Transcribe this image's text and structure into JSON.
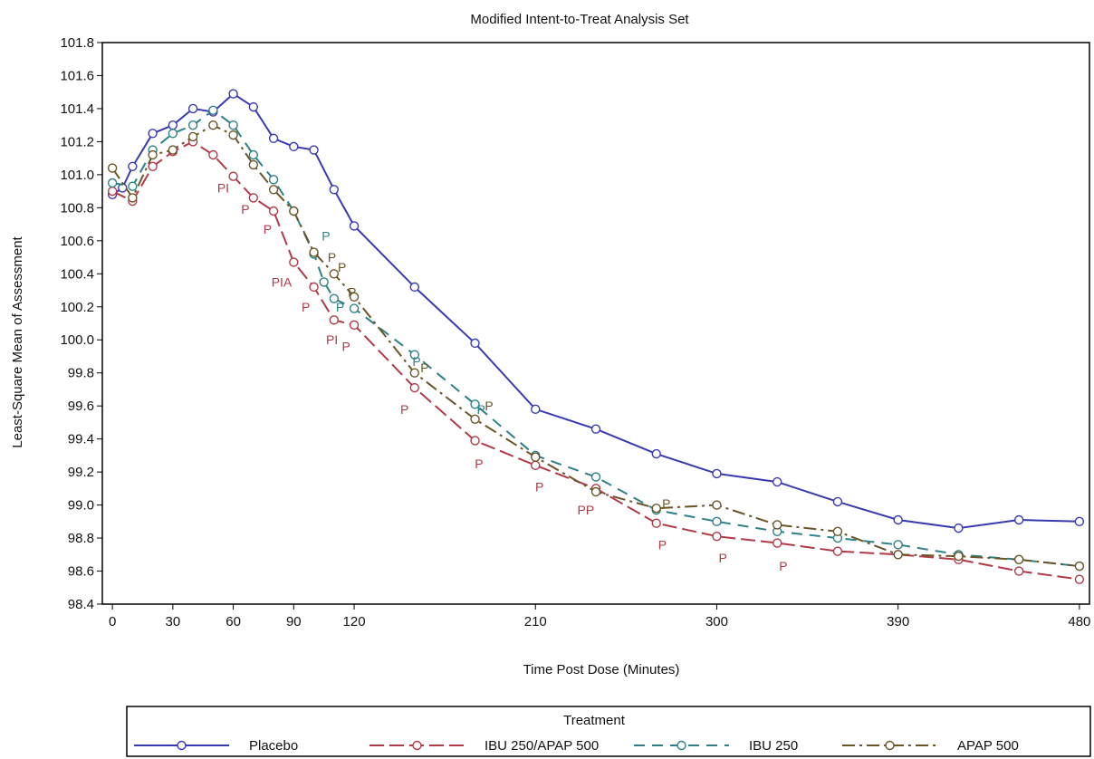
{
  "chart_data": {
    "type": "line",
    "title": "Modified Intent-to-Treat Analysis Set",
    "xlabel": "Time Post Dose (Minutes)",
    "ylabel": "Least-Square Mean of Assessment",
    "xlim": [
      -5,
      485
    ],
    "ylim": [
      98.4,
      101.8
    ],
    "xticks": [
      0,
      30,
      60,
      90,
      120,
      210,
      300,
      390,
      480
    ],
    "yticks": [
      98.4,
      98.6,
      98.8,
      99.0,
      99.2,
      99.4,
      99.6,
      99.8,
      100.0,
      100.2,
      100.4,
      100.6,
      100.8,
      101.0,
      101.2,
      101.4,
      101.6,
      101.8
    ],
    "ytick_labels": [
      "98.4",
      "98.6",
      "98.8",
      "99.0",
      "99.2",
      "99.4",
      "99.6",
      "99.8",
      "100.0",
      "100.2",
      "100.4",
      "100.6",
      "100.8",
      "101.0",
      "101.2",
      "101.4",
      "101.6",
      "101.8"
    ],
    "grid": false,
    "legend": {
      "title": "Treatment",
      "placement": "bottom"
    },
    "series": [
      {
        "name": "Placebo",
        "color": "#3a3ab0",
        "dash": "solid",
        "points": [
          [
            0,
            100.88
          ],
          [
            5,
            100.92
          ],
          [
            10,
            101.05
          ],
          [
            20,
            101.25
          ],
          [
            30,
            101.3
          ],
          [
            40,
            101.4
          ],
          [
            50,
            101.38
          ],
          [
            60,
            101.49
          ],
          [
            70,
            101.41
          ],
          [
            80,
            101.22
          ],
          [
            90,
            101.17
          ],
          [
            100,
            101.15
          ],
          [
            110,
            100.91
          ],
          [
            120,
            100.69
          ],
          [
            150,
            100.32
          ],
          [
            180,
            99.98
          ],
          [
            210,
            99.58
          ],
          [
            240,
            99.46
          ],
          [
            270,
            99.31
          ],
          [
            300,
            99.19
          ],
          [
            330,
            99.14
          ],
          [
            360,
            99.02
          ],
          [
            390,
            98.91
          ],
          [
            420,
            98.86
          ],
          [
            450,
            98.91
          ],
          [
            480,
            98.9
          ]
        ]
      },
      {
        "name": "IBU 250/APAP 500",
        "color": "#b03a48",
        "dash": "longdash",
        "points": [
          [
            0,
            100.9
          ],
          [
            10,
            100.84
          ],
          [
            20,
            101.05
          ],
          [
            30,
            101.14
          ],
          [
            40,
            101.2
          ],
          [
            50,
            101.12
          ],
          [
            60,
            100.99
          ],
          [
            70,
            100.86
          ],
          [
            80,
            100.78
          ],
          [
            90,
            100.47
          ],
          [
            100,
            100.32
          ],
          [
            110,
            100.12
          ],
          [
            120,
            100.09
          ],
          [
            150,
            99.71
          ],
          [
            180,
            99.39
          ],
          [
            210,
            99.24
          ],
          [
            240,
            99.1
          ],
          [
            270,
            98.89
          ],
          [
            300,
            98.81
          ],
          [
            330,
            98.77
          ],
          [
            360,
            98.72
          ],
          [
            390,
            98.7
          ],
          [
            420,
            98.67
          ],
          [
            450,
            98.6
          ],
          [
            480,
            98.55
          ]
        ]
      },
      {
        "name": "IBU 250",
        "color": "#2e8086",
        "dash": "dash",
        "points": [
          [
            0,
            100.95
          ],
          [
            10,
            100.93
          ],
          [
            20,
            101.15
          ],
          [
            30,
            101.25
          ],
          [
            40,
            101.3
          ],
          [
            50,
            101.39
          ],
          [
            60,
            101.3
          ],
          [
            70,
            101.12
          ],
          [
            80,
            100.97
          ],
          [
            90,
            100.78
          ],
          [
            100,
            100.52
          ],
          [
            105,
            100.35
          ],
          [
            110,
            100.25
          ],
          [
            120,
            100.19
          ],
          [
            150,
            99.91
          ],
          [
            180,
            99.61
          ],
          [
            210,
            99.3
          ],
          [
            240,
            99.17
          ],
          [
            270,
            98.97
          ],
          [
            300,
            98.9
          ],
          [
            330,
            98.84
          ],
          [
            360,
            98.8
          ],
          [
            390,
            98.76
          ],
          [
            420,
            98.7
          ],
          [
            450,
            98.67
          ],
          [
            480,
            98.63
          ]
        ]
      },
      {
        "name": "APAP 500",
        "color": "#6b5528",
        "dash": "dashdot",
        "points": [
          [
            0,
            101.04
          ],
          [
            10,
            100.86
          ],
          [
            20,
            101.12
          ],
          [
            30,
            101.15
          ],
          [
            40,
            101.23
          ],
          [
            50,
            101.3
          ],
          [
            60,
            101.24
          ],
          [
            70,
            101.06
          ],
          [
            80,
            100.91
          ],
          [
            90,
            100.78
          ],
          [
            100,
            100.53
          ],
          [
            110,
            100.4
          ],
          [
            120,
            100.26
          ],
          [
            150,
            99.8
          ],
          [
            180,
            99.52
          ],
          [
            210,
            99.29
          ],
          [
            240,
            99.08
          ],
          [
            270,
            98.98
          ],
          [
            300,
            99.0
          ],
          [
            330,
            98.88
          ],
          [
            360,
            98.84
          ],
          [
            390,
            98.7
          ],
          [
            420,
            98.69
          ],
          [
            450,
            98.67
          ],
          [
            480,
            98.63
          ]
        ]
      }
    ],
    "annotations": [
      {
        "text": "PI",
        "x": 55,
        "y": 100.92,
        "color": "#b03a48"
      },
      {
        "text": "P",
        "x": 66,
        "y": 100.79,
        "color": "#b03a48"
      },
      {
        "text": "P",
        "x": 77,
        "y": 100.67,
        "color": "#b03a48"
      },
      {
        "text": "PIA",
        "x": 84,
        "y": 100.35,
        "color": "#b03a48"
      },
      {
        "text": "P",
        "x": 96,
        "y": 100.2,
        "color": "#b03a48"
      },
      {
        "text": "PI",
        "x": 109,
        "y": 100.0,
        "color": "#b03a48"
      },
      {
        "text": "P",
        "x": 116,
        "y": 99.96,
        "color": "#b03a48"
      },
      {
        "text": "P",
        "x": 145,
        "y": 99.58,
        "color": "#b03a48"
      },
      {
        "text": "P",
        "x": 182,
        "y": 99.25,
        "color": "#b03a48"
      },
      {
        "text": "P",
        "x": 212,
        "y": 99.11,
        "color": "#b03a48"
      },
      {
        "text": "PP",
        "x": 235,
        "y": 98.97,
        "color": "#b03a48"
      },
      {
        "text": "P",
        "x": 273,
        "y": 98.76,
        "color": "#b03a48"
      },
      {
        "text": "P",
        "x": 303,
        "y": 98.68,
        "color": "#b03a48"
      },
      {
        "text": "P",
        "x": 333,
        "y": 98.63,
        "color": "#b03a48"
      },
      {
        "text": "P",
        "x": 106,
        "y": 100.63,
        "color": "#2e8086"
      },
      {
        "text": "P",
        "x": 109,
        "y": 100.5,
        "color": "#6b5528"
      },
      {
        "text": "P",
        "x": 114,
        "y": 100.44,
        "color": "#6b5528"
      },
      {
        "text": "P",
        "x": 119,
        "y": 100.29,
        "color": "#6b5528"
      },
      {
        "text": "P",
        "x": 113,
        "y": 100.2,
        "color": "#2e8086"
      },
      {
        "text": "P",
        "x": 151,
        "y": 99.87,
        "color": "#2e8086"
      },
      {
        "text": "P",
        "x": 155,
        "y": 99.83,
        "color": "#6b5528"
      },
      {
        "text": "P",
        "x": 183,
        "y": 99.58,
        "color": "#2e8086"
      },
      {
        "text": "P",
        "x": 187,
        "y": 99.6,
        "color": "#6b5528"
      },
      {
        "text": "P",
        "x": 275,
        "y": 99.01,
        "color": "#6b5528"
      }
    ]
  }
}
